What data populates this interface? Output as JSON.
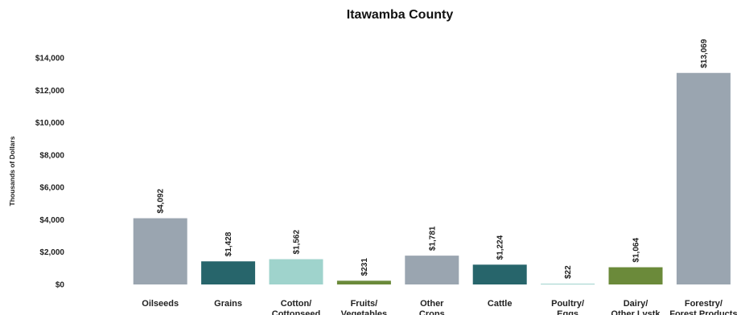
{
  "chart_data": {
    "type": "bar",
    "title": "Itawamba County",
    "ylabel": "Thousands of Dollars",
    "xlabel": "",
    "ylim": [
      0,
      14000
    ],
    "yticks": [
      0,
      2000,
      4000,
      6000,
      8000,
      10000,
      12000,
      14000
    ],
    "ytick_labels": [
      "$0",
      "$2,000",
      "$4,000",
      "$6,000",
      "$8,000",
      "$10,000",
      "$12,000",
      "$14,000"
    ],
    "grid": false,
    "legend": "none",
    "categories": [
      [
        "Oilseeds"
      ],
      [
        "Grains"
      ],
      [
        "Cotton/",
        "Cottonseed"
      ],
      [
        "Fruits/",
        "Vegetables"
      ],
      [
        "Other",
        "Crops"
      ],
      [
        "Cattle"
      ],
      [
        "Poultry/",
        "Eggs"
      ],
      [
        "Dairy/",
        "Other Lvstk"
      ],
      [
        "Forestry/",
        "Forest Products"
      ]
    ],
    "values": [
      4092,
      1428,
      1562,
      231,
      1781,
      1224,
      22,
      1064,
      13069
    ],
    "value_labels": [
      "$4,092",
      "$1,428",
      "$1,562",
      "$231",
      "$1,781",
      "$1,224",
      "$22",
      "$1,064",
      "$13,069"
    ],
    "colors": [
      "#9aa5b0",
      "#27656b",
      "#9fd3cc",
      "#6b8a3a",
      "#9aa5b0",
      "#27656b",
      "#9fd3cc",
      "#6b8a3a",
      "#9aa5b0"
    ]
  }
}
